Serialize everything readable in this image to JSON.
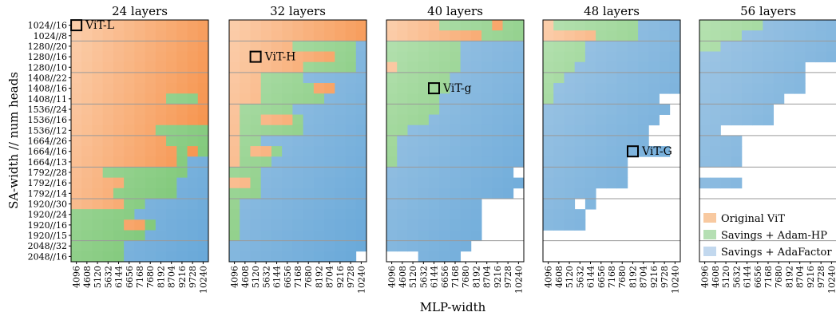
{
  "chart_data": {
    "type": "heatmap",
    "xlabel": "MLP-width",
    "ylabel": "SA-width // num heads",
    "x_ticks": [
      "4096",
      "4608",
      "5120",
      "5632",
      "6144",
      "6656",
      "7168",
      "7680",
      "8192",
      "8704",
      "9216",
      "9728",
      "10240"
    ],
    "y_ticks": [
      "1024//16",
      "1024//8",
      "1280//20",
      "1280//16",
      "1280//10",
      "1408//22",
      "1408//16",
      "1408//11",
      "1536//24",
      "1536//16",
      "1536//12",
      "1664//26",
      "1664//16",
      "1664//13",
      "1792//28",
      "1792//16",
      "1792//14",
      "1920//30",
      "1920//24",
      "1920//16",
      "1920//15",
      "2048//32",
      "2048//16"
    ],
    "categories_legend": [
      {
        "key": "O",
        "label": "Original ViT",
        "color": "#f8c9a0"
      },
      {
        "key": "G",
        "label": "Savings + Adam-HP",
        "color": "#b5dfb3"
      },
      {
        "key": "B",
        "label": "Savings + AdaFactor",
        "color": "#c2d8ee"
      }
    ],
    "colors": {
      "O_light": "#fde3cd",
      "O_dark": "#f5893c",
      "G_light": "#c4e8c0",
      "G_dark": "#73c26c",
      "B_light": "#a9cbe6",
      "B_dark": "#6aa9d9"
    },
    "panels": [
      {
        "title": "24 layers",
        "rows": [
          "OOOOOOOOOOOOO",
          "OOOOOOOOOOOOO",
          "OOOOOOOOOOOOO",
          "OOOOOOOOOOOOO",
          "OOOOOOOOOOOOO",
          "OOOOOOOOOOOOO",
          "OOOOOOOOOOOOO",
          "OOOOOOOOOGGGO",
          "OOOOOOOOOOOOO",
          "OOOOOOOOOOOOO",
          "OOOOOOOOGGGGG",
          "OOOOOOOOOGGGG",
          "OOOOOOOOOOGOG",
          "OOOOOOOOOOGBB",
          "OOOGGGGGGGGBB",
          "OOOOOGGGGGBBB",
          "OOOOGGGGGGBBB",
          "OOOOOGGBBBBBB",
          "GGGGGGBBBBBBB",
          "GGGGGOOGBBBBB",
          "GGGGGGGBBBBBB",
          "GGGGGBBBBBBBB",
          "GGGGGBBBBBBBB"
        ],
        "annotation": {
          "label": "ViT-L",
          "col": 0,
          "row": 0
        }
      },
      {
        "title": "32 layers",
        "rows": [
          "OOOOOOOOOOOOO",
          "OOOOOOOOOOOOO",
          "OOOOOOGGGGGGB",
          "OOOOOOOOOOGGB",
          "OOOOOOOGGGGGB",
          "OOOGGGGBBBBBB",
          "OOOGGGGGOOBBB",
          "OOOGGGGGGBBBB",
          "OGGGGGBBBBBBB",
          "OGGOOOGBBBBBB",
          "OGGGGGGBBBBBB",
          "OGGBBBBBBBBBB",
          "OGOOGBBBBBBBB",
          "OGGGBBBBBBBBB",
          "GGGBBBBBBBBBB",
          "OOGBBBBBBBBBB",
          "GGGBBBBBBBBBB",
          "GBBBBBBBBBBBB",
          "GBBBBBBBBBBBB",
          "GBBBBBBBBBBBB",
          "GBBBBBBBBBBBB",
          "BBBBBBBBBBBBB",
          "BBBBBBBBBBBB-"
        ],
        "annotation": {
          "label": "ViT-H",
          "col": 2,
          "row": 3
        }
      },
      {
        "title": "40 layers",
        "rows": [
          "OOOOOGGGGGOGG",
          "OOOOOOOOOGGGG",
          "GGGGGGGBBBBBB",
          "GGGGGGGBBBBBB",
          "OGGGGGGBBBBBB",
          "GGGGGGBBBBBBB",
          "GGGGGGBBBBBBB",
          "GGGGGBBBBBBBB",
          "GGGGGBBBBBBBB",
          "GGGGBBBBBBBBB",
          "GGBBBBBBBBBBB",
          "GBBBBBBBBBBBB",
          "GBBBBBBBBBBBB",
          "GBBBBBBBBBBBB",
          "BBBBBBBBBBBB-",
          "BBBBBBBBBBBBB",
          "BBBBBBBBBBBB-",
          "BBBBBBBBB----",
          "BBBBBBBBB----",
          "BBBBBBBBB----",
          "BBBBBBBBB----",
          "BBBBBBBB-----",
          "---BBBB------"
        ],
        "annotation": {
          "label": "ViT-g",
          "col": 4,
          "row": 6
        }
      },
      {
        "title": "48 layers",
        "rows": [
          "OGGGGGGGGBBBB",
          "OOOOOGGGGBBBB",
          "GGGGBBBBBBBBB",
          "GGGGBBBBBBBBB",
          "GGGBBBBBBBBBB",
          "GGBBBBBBBBBBB",
          "GBBBBBBBBBBBB",
          "GBBBBBBBBBB--",
          "BBBBBBBBBBBB-",
          "BBBBBBBBBBB--",
          "BBBBBBBBBB---",
          "BBBBBBBBBB---",
          "BBBBBBBBBBBB-",
          "BBBBBBBB-----",
          "BBBBBBBB-----",
          "BBBBBBBB-----",
          "BBBBB--------",
          "BBB-B--------",
          "BBBB---------",
          "BBBB---------",
          "-------------",
          "-------------",
          "-------------"
        ],
        "annotation": {
          "label": "ViT-G",
          "col": 8,
          "row": 12
        }
      },
      {
        "title": "56 layers",
        "rows": [
          "GGGGGGBBBBBBB",
          "GGGGBBBBBBBBB",
          "GGBBBBBBBBBBB",
          "BBBBBBBBBBBBB",
          "BBBBBBBBBB---",
          "BBBBBBBBBB---",
          "BBBBBBBBBB---",
          "BBBBBBBB-----",
          "BBBBBBB------",
          "BBBBBBB------",
          "BB-----------",
          "BBBB---------",
          "BBBB---------",
          "BBBB---------",
          "-------------",
          "BBBB---------",
          "-------------",
          "-------------",
          "-------------",
          "-------------",
          "-------------",
          "-------------",
          "-------------"
        ]
      }
    ],
    "group_separators_after_rows": [
      1,
      4,
      7,
      10,
      13,
      16,
      20
    ],
    "legend_placement": "bottom-right"
  }
}
